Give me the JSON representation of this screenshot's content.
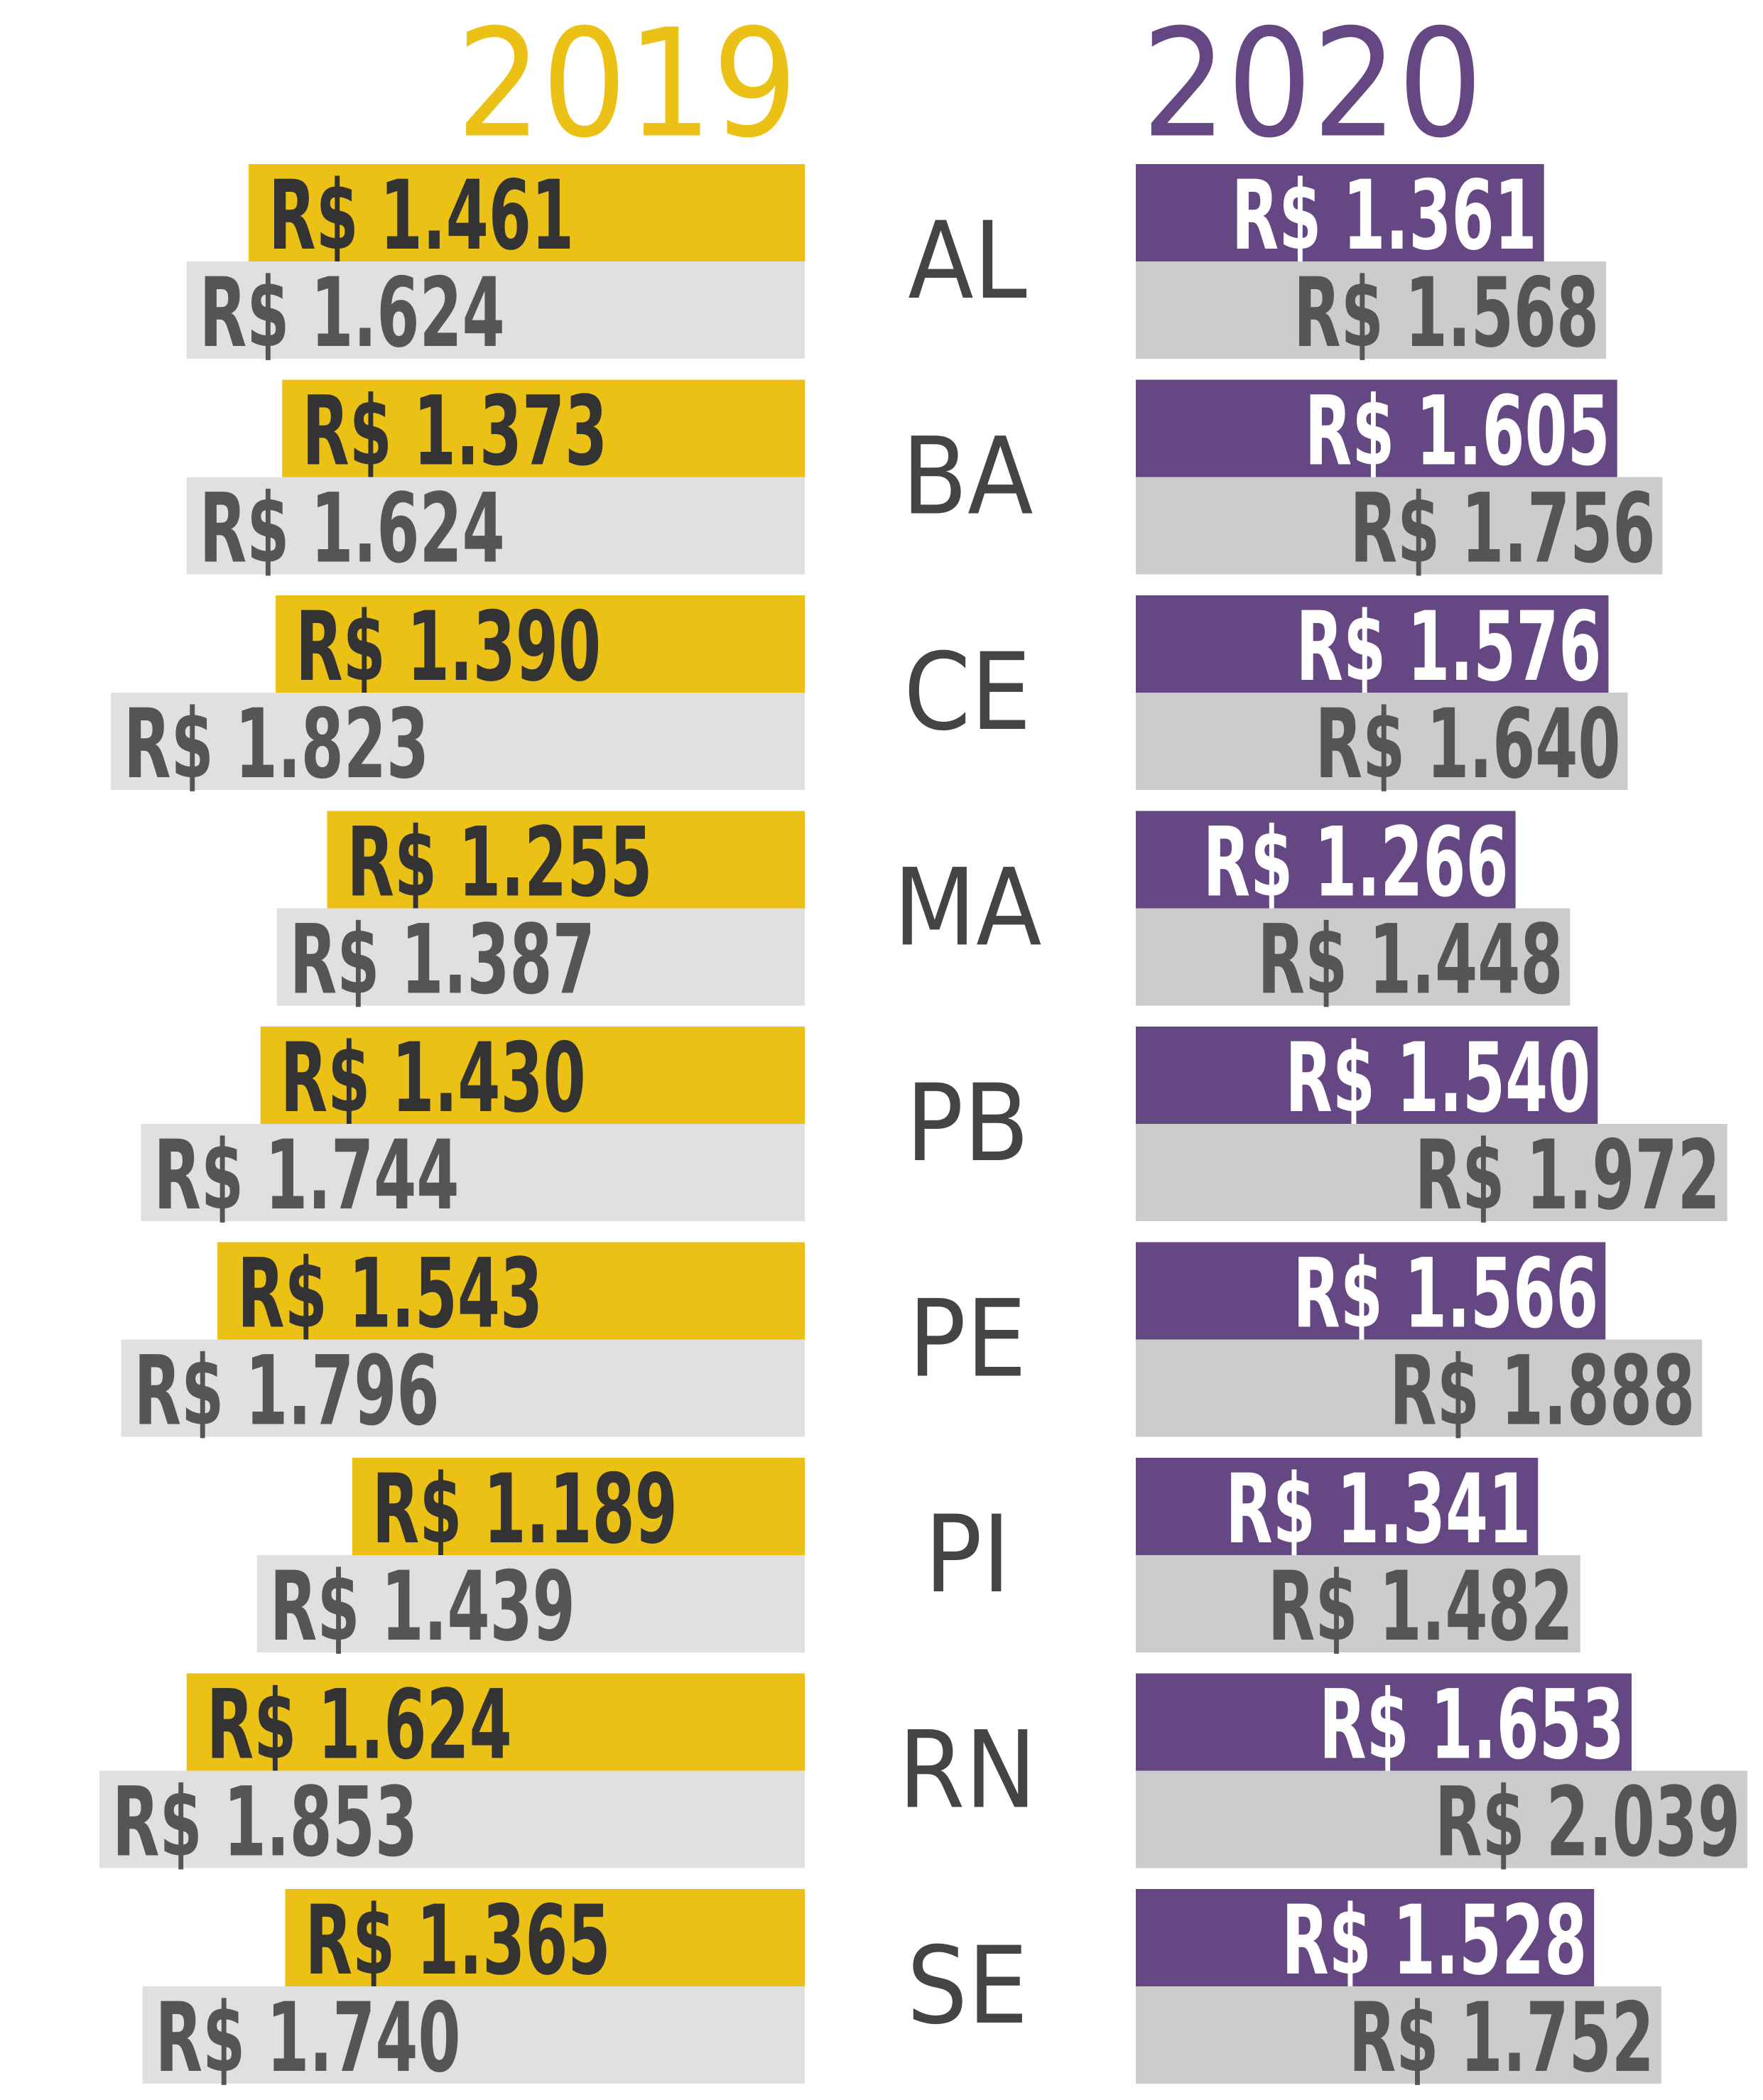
{
  "chart_data": {
    "type": "bar",
    "categories": [
      "AL",
      "BA",
      "CE",
      "MA",
      "PB",
      "PE",
      "PI",
      "RN",
      "SE"
    ],
    "panels": [
      {
        "title": "2019",
        "color": "#ecc115",
        "side": "left",
        "series": [
          {
            "color": "#ecc115",
            "label_color": "#333333",
            "values": [
              1461,
              1373,
              1390,
              1255,
              1430,
              1543,
              1189,
              1624,
              1365
            ],
            "value_labels": [
              "R$ 1.461",
              "R$ 1.373",
              "R$ 1.390",
              "R$ 1.255",
              "R$ 1.430",
              "R$ 1.543",
              "R$ 1.189",
              "R$ 1.624",
              "R$ 1.365"
            ]
          },
          {
            "color": "#e0e0e0",
            "label_color": "#555555",
            "values": [
              1624,
              1624,
              1823,
              1387,
              1744,
              1796,
              1439,
              1853,
              1740
            ],
            "value_labels": [
              "R$ 1.624",
              "R$ 1.624",
              "R$ 1.823",
              "R$ 1.387",
              "R$ 1.744",
              "R$ 1.796",
              "R$ 1.439",
              "R$ 1.853",
              "R$ 1.740"
            ]
          }
        ]
      },
      {
        "title": "2020",
        "color": "#654783",
        "side": "right",
        "series": [
          {
            "color": "#654783",
            "label_color": "#ffffff",
            "values": [
              1361,
              1605,
              1576,
              1266,
              1540,
              1566,
              1341,
              1653,
              1528
            ],
            "value_labels": [
              "R$ 1.361",
              "R$ 1.605",
              "R$ 1.576",
              "R$ 1.266",
              "R$ 1.540",
              "R$ 1.566",
              "R$ 1.341",
              "R$ 1.653",
              "R$ 1.528"
            ]
          },
          {
            "color": "#cccccc",
            "label_color": "#555555",
            "values": [
              1568,
              1756,
              1640,
              1448,
              1972,
              1888,
              1482,
              2039,
              1752
            ],
            "value_labels": [
              "R$ 1.568",
              "R$ 1.756",
              "R$ 1.640",
              "R$ 1.448",
              "R$ 1.972",
              "R$ 1.888",
              "R$ 1.482",
              "R$ 2.039",
              "R$ 1.752"
            ]
          }
        ]
      }
    ]
  }
}
